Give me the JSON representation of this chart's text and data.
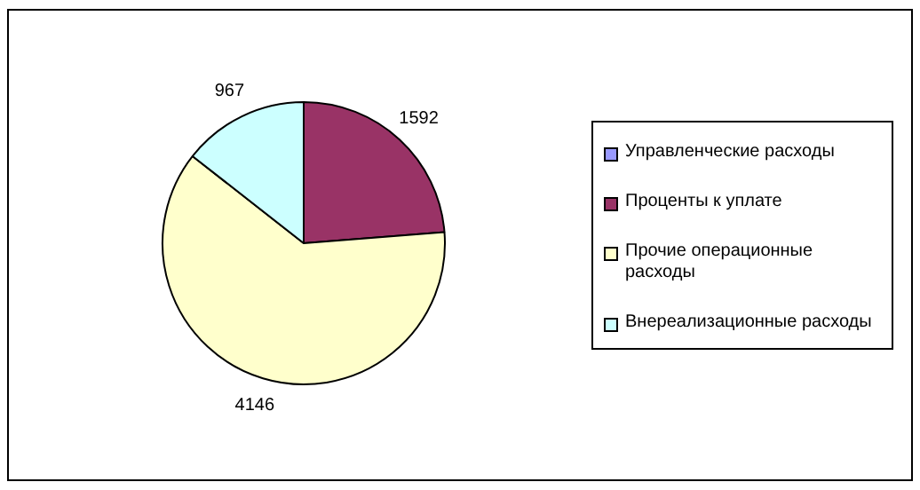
{
  "chart_data": {
    "type": "pie",
    "categories": [
      "Управленческие расходы",
      "Проценты к уплате",
      "Прочие операционные расходы",
      "Внереализационные расходы"
    ],
    "values": [
      0,
      1592,
      4146,
      967
    ],
    "value_labels": [
      null,
      "1592",
      "4146",
      "967"
    ],
    "colors": [
      "#9999ff",
      "#993366",
      "#ffffcc",
      "#ccffff"
    ],
    "legend": "right"
  }
}
